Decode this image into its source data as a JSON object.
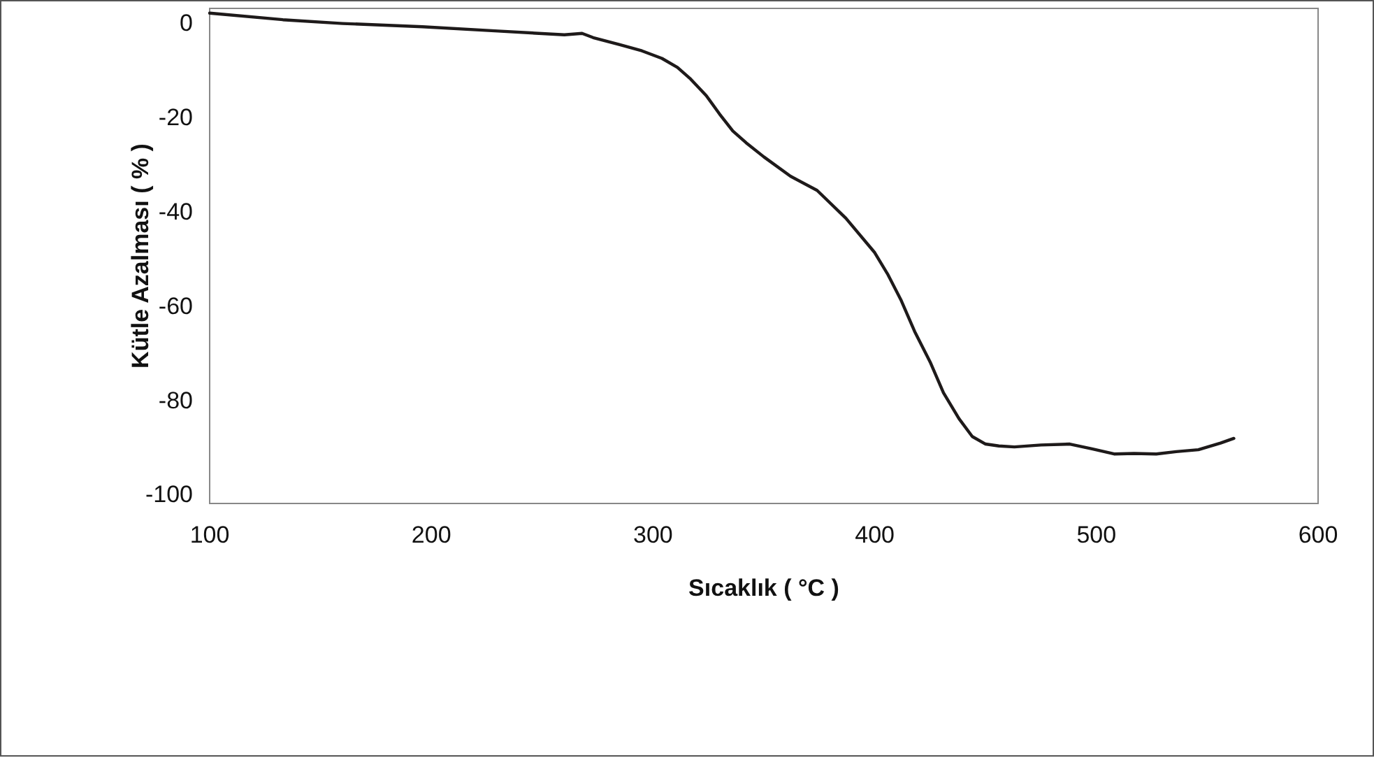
{
  "chart_data": {
    "type": "line",
    "xlabel": "Sıcaklık ( °C )",
    "ylabel": "Kütle Azalması ( % )",
    "xlim": [
      100,
      600
    ],
    "ylim": [
      -102,
      3
    ],
    "xticks": [
      100,
      200,
      300,
      400,
      500,
      600
    ],
    "yticks": [
      -100,
      -80,
      -60,
      -40,
      -20,
      0
    ],
    "grid": false,
    "marker": "none",
    "line_style": "solid",
    "series": [
      {
        "color": "#1e1a1a",
        "x": [
          100,
          133,
          160,
          196,
          230,
          260,
          268,
          273,
          285,
          295,
          304,
          311,
          317,
          324,
          330,
          336,
          342,
          350,
          362,
          374,
          387,
          400,
          406,
          412,
          418,
          425,
          431,
          438,
          444,
          450,
          456,
          463,
          475,
          488,
          498,
          508,
          517,
          527,
          536,
          546,
          556,
          562
        ],
        "values": [
          2,
          0.6,
          -0.2,
          -0.9,
          -1.8,
          -2.6,
          -2.3,
          -3.2,
          -4.7,
          -6,
          -7.6,
          -9.5,
          -12,
          -15.5,
          -19.4,
          -23,
          -25.5,
          -28.5,
          -32.6,
          -35.6,
          -41.5,
          -48.8,
          -53.5,
          -59,
          -65.5,
          -72,
          -78.5,
          -84,
          -87.8,
          -89.4,
          -89.8,
          -90,
          -89.6,
          -89.4,
          -90.4,
          -91.5,
          -91.4,
          -91.5,
          -91,
          -90.6,
          -89.2,
          -88.2
        ]
      }
    ]
  }
}
